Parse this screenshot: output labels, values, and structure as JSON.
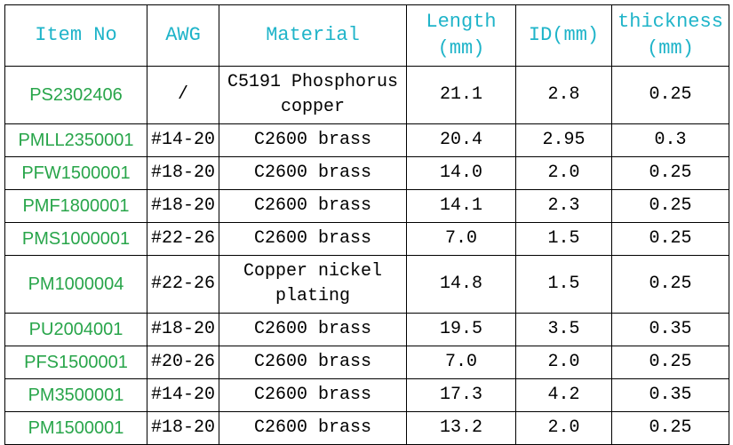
{
  "table": {
    "header": [
      "Item No",
      "AWG",
      "Material",
      "Length (mm)",
      "ID(mm)",
      "thickness (mm)"
    ],
    "rows": [
      [
        "PS2302406",
        "/",
        "C5191 Phosphorus copper",
        "21.1",
        "2.8",
        "0.25"
      ],
      [
        "PMLL2350001",
        "#14-20",
        "C2600 brass",
        "20.4",
        "2.95",
        "0.3"
      ],
      [
        "PFW1500001",
        "#18-20",
        "C2600 brass",
        "14.0",
        "2.0",
        "0.25"
      ],
      [
        "PMF1800001",
        "#18-20",
        "C2600 brass",
        "14.1",
        "2.3",
        "0.25"
      ],
      [
        "PMS1000001",
        "#22-26",
        "C2600 brass",
        "7.0",
        "1.5",
        "0.25"
      ],
      [
        "PM1000004",
        "#22-26",
        "Copper nickel plating",
        "14.8",
        "1.5",
        "0.25"
      ],
      [
        "PU2004001",
        "#18-20",
        "C2600 brass",
        "19.5",
        "3.5",
        "0.35"
      ],
      [
        "PFS1500001",
        "#20-26",
        "C2600 brass",
        "7.0",
        "2.0",
        "0.25"
      ],
      [
        "PM3500001",
        "#14-20",
        "C2600 brass",
        "17.3",
        "4.2",
        "0.35"
      ],
      [
        "PM1500001",
        "#18-20",
        "C2600 brass",
        "13.2",
        "2.0",
        "0.25"
      ]
    ]
  }
}
